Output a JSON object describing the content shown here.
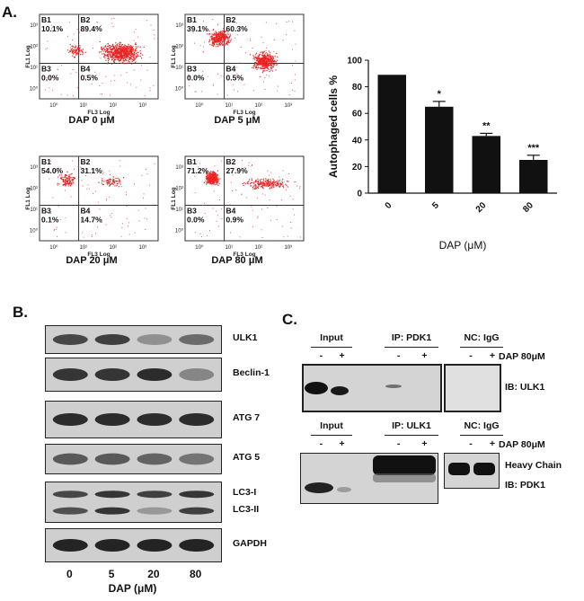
{
  "figure": {
    "panel_a": {
      "letter": "A.",
      "flow_plots": [
        {
          "caption": "DAP 0 μM",
          "gates": {
            "B1": "10.1%",
            "B2": "89.4%",
            "B3": "0.0%",
            "B4": "0.5%"
          }
        },
        {
          "caption": "DAP 5 μM",
          "gates": {
            "B1": "39.1%",
            "B2": "60.3%",
            "B3": "0.0%",
            "B4": "0.5%"
          }
        },
        {
          "caption": "DAP 20 μM",
          "gates": {
            "B1": "54.0%",
            "B2": "31.1%",
            "B3": "0.1%",
            "B4": "14.7%"
          }
        },
        {
          "caption": "DAP 80 μM",
          "gates": {
            "B1": "71.2%",
            "B2": "27.9%",
            "B3": "0.0%",
            "B4": "0.9%"
          }
        }
      ],
      "gate_names": [
        "B1",
        "B2",
        "B3",
        "B4"
      ],
      "flow_ylabel": "FL1 Log",
      "flow_xlabel": "FL3 Log",
      "flow_ticks": [
        "10⁰",
        "10¹",
        "10²",
        "10³"
      ]
    },
    "panel_b": {
      "letter": "B.",
      "bands": [
        "ULK1",
        "Beclin-1",
        "ATG 7",
        "ATG 5",
        "LC3-I",
        "LC3-II",
        "GAPDH"
      ],
      "lanes": [
        "0",
        "5",
        "20",
        "80"
      ],
      "xlabel": "DAP (μM)"
    },
    "panel_c": {
      "letter": "C.",
      "top": {
        "groups": [
          "Input",
          "IP: PDK1",
          "NC: IgG"
        ],
        "signs": [
          "-",
          "+"
        ],
        "treatment": "DAP 80μM",
        "ib": "IB: ULK1"
      },
      "bottom": {
        "groups": [
          "Input",
          "IP: ULK1",
          "NC: IgG"
        ],
        "signs": [
          "-",
          "+"
        ],
        "treatment": "DAP 80μM",
        "heavy": "Heavy Chain",
        "ib": "IB: PDK1"
      }
    }
  },
  "chart_data": {
    "type": "bar",
    "categories": [
      "0",
      "5",
      "20",
      "80"
    ],
    "values": [
      89,
      65,
      43,
      25
    ],
    "errors": [
      0,
      4,
      2,
      3.5
    ],
    "annotations": [
      "",
      "*",
      "**",
      "***"
    ],
    "xlabel": "DAP (μM)",
    "ylabel": "Autophaged cells %",
    "ylim": [
      0,
      100
    ],
    "yticks": [
      0,
      20,
      40,
      60,
      80,
      100
    ],
    "color": "#111111"
  }
}
